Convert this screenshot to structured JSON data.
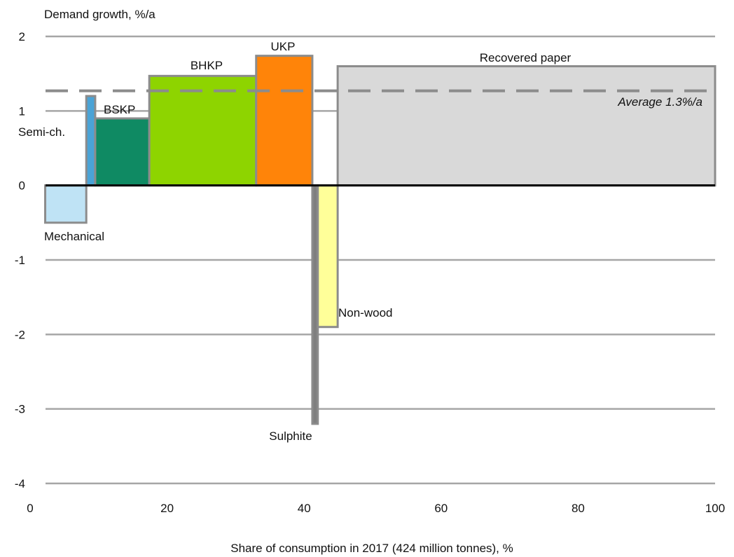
{
  "chart_data": {
    "type": "bar",
    "variant": "variable-width",
    "ylabel": "Demand growth, %/a",
    "xlabel": "Share of consumption in 2017 (424 million tonnes), %",
    "xlim": [
      0,
      100
    ],
    "ylim": [
      -4,
      2
    ],
    "xticks": [
      "0",
      "20",
      "40",
      "60",
      "80",
      "100"
    ],
    "yticks": [
      "2",
      "1",
      "0",
      "-1",
      "-2",
      "-3",
      "-4"
    ],
    "grid": "horizontal",
    "colors": {
      "grid": "#a6a6a6",
      "outline": "#8c8c8c",
      "zero_line": "#000000",
      "average": "#8c8c8c"
    },
    "bars": [
      {
        "label": "Mechanical",
        "x_start": 2.2,
        "share": 6.0,
        "value": -0.5,
        "color": "#bfe3f5"
      },
      {
        "label": "Semi-ch.",
        "x_start": 8.2,
        "share": 1.3,
        "value": 1.2,
        "color": "#4aa3d6"
      },
      {
        "label": "BSKP",
        "x_start": 9.5,
        "share": 7.9,
        "value": 0.9,
        "color": "#0f8a63"
      },
      {
        "label": "BHKP",
        "x_start": 17.4,
        "share": 15.6,
        "value": 1.47,
        "color": "#8ed400"
      },
      {
        "label": "UKP",
        "x_start": 33.0,
        "share": 8.2,
        "value": 1.74,
        "color": "#ff8409"
      },
      {
        "label": "Sulphite",
        "x_start": 41.2,
        "share": 0.8,
        "value": -3.2,
        "color": "#7f7f7f"
      },
      {
        "label": "Non-wood",
        "x_start": 42.0,
        "share": 2.9,
        "value": -1.9,
        "color": "#ffff99"
      },
      {
        "label": "Recovered paper",
        "x_start": 44.9,
        "share": 55.1,
        "value": 1.6,
        "color": "#d9d9d9"
      }
    ],
    "average": {
      "label": "Average 1.3%/a",
      "value": 1.27
    }
  }
}
